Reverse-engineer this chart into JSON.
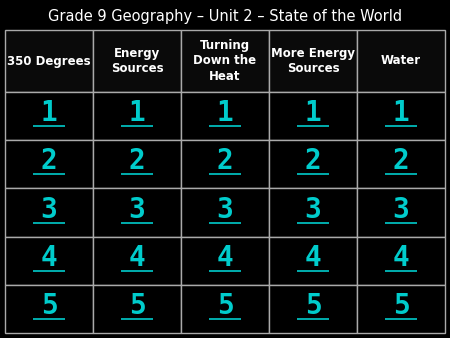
{
  "title": "Grade 9 Geography – Unit 2 – State of the World",
  "title_fontsize": 10.5,
  "title_color": "white",
  "background_color": "black",
  "grid_line_color": "#aaaaaa",
  "header_text_color": "white",
  "cell_text_color": "#00CCCC",
  "headers": [
    "350 Degrees",
    "Energy\nSources",
    "Turning\nDown the\nHeat",
    "More Energy\nSources",
    "Water"
  ],
  "num_cols": 5,
  "num_rows": 5,
  "cell_values": [
    "1",
    "2",
    "3",
    "4",
    "5"
  ],
  "header_fontsize": 8.5,
  "cell_fontsize": 20,
  "header_bg_color": "#0a0a0a",
  "cell_bg_color": "#000000",
  "header_font_weight": "bold"
}
